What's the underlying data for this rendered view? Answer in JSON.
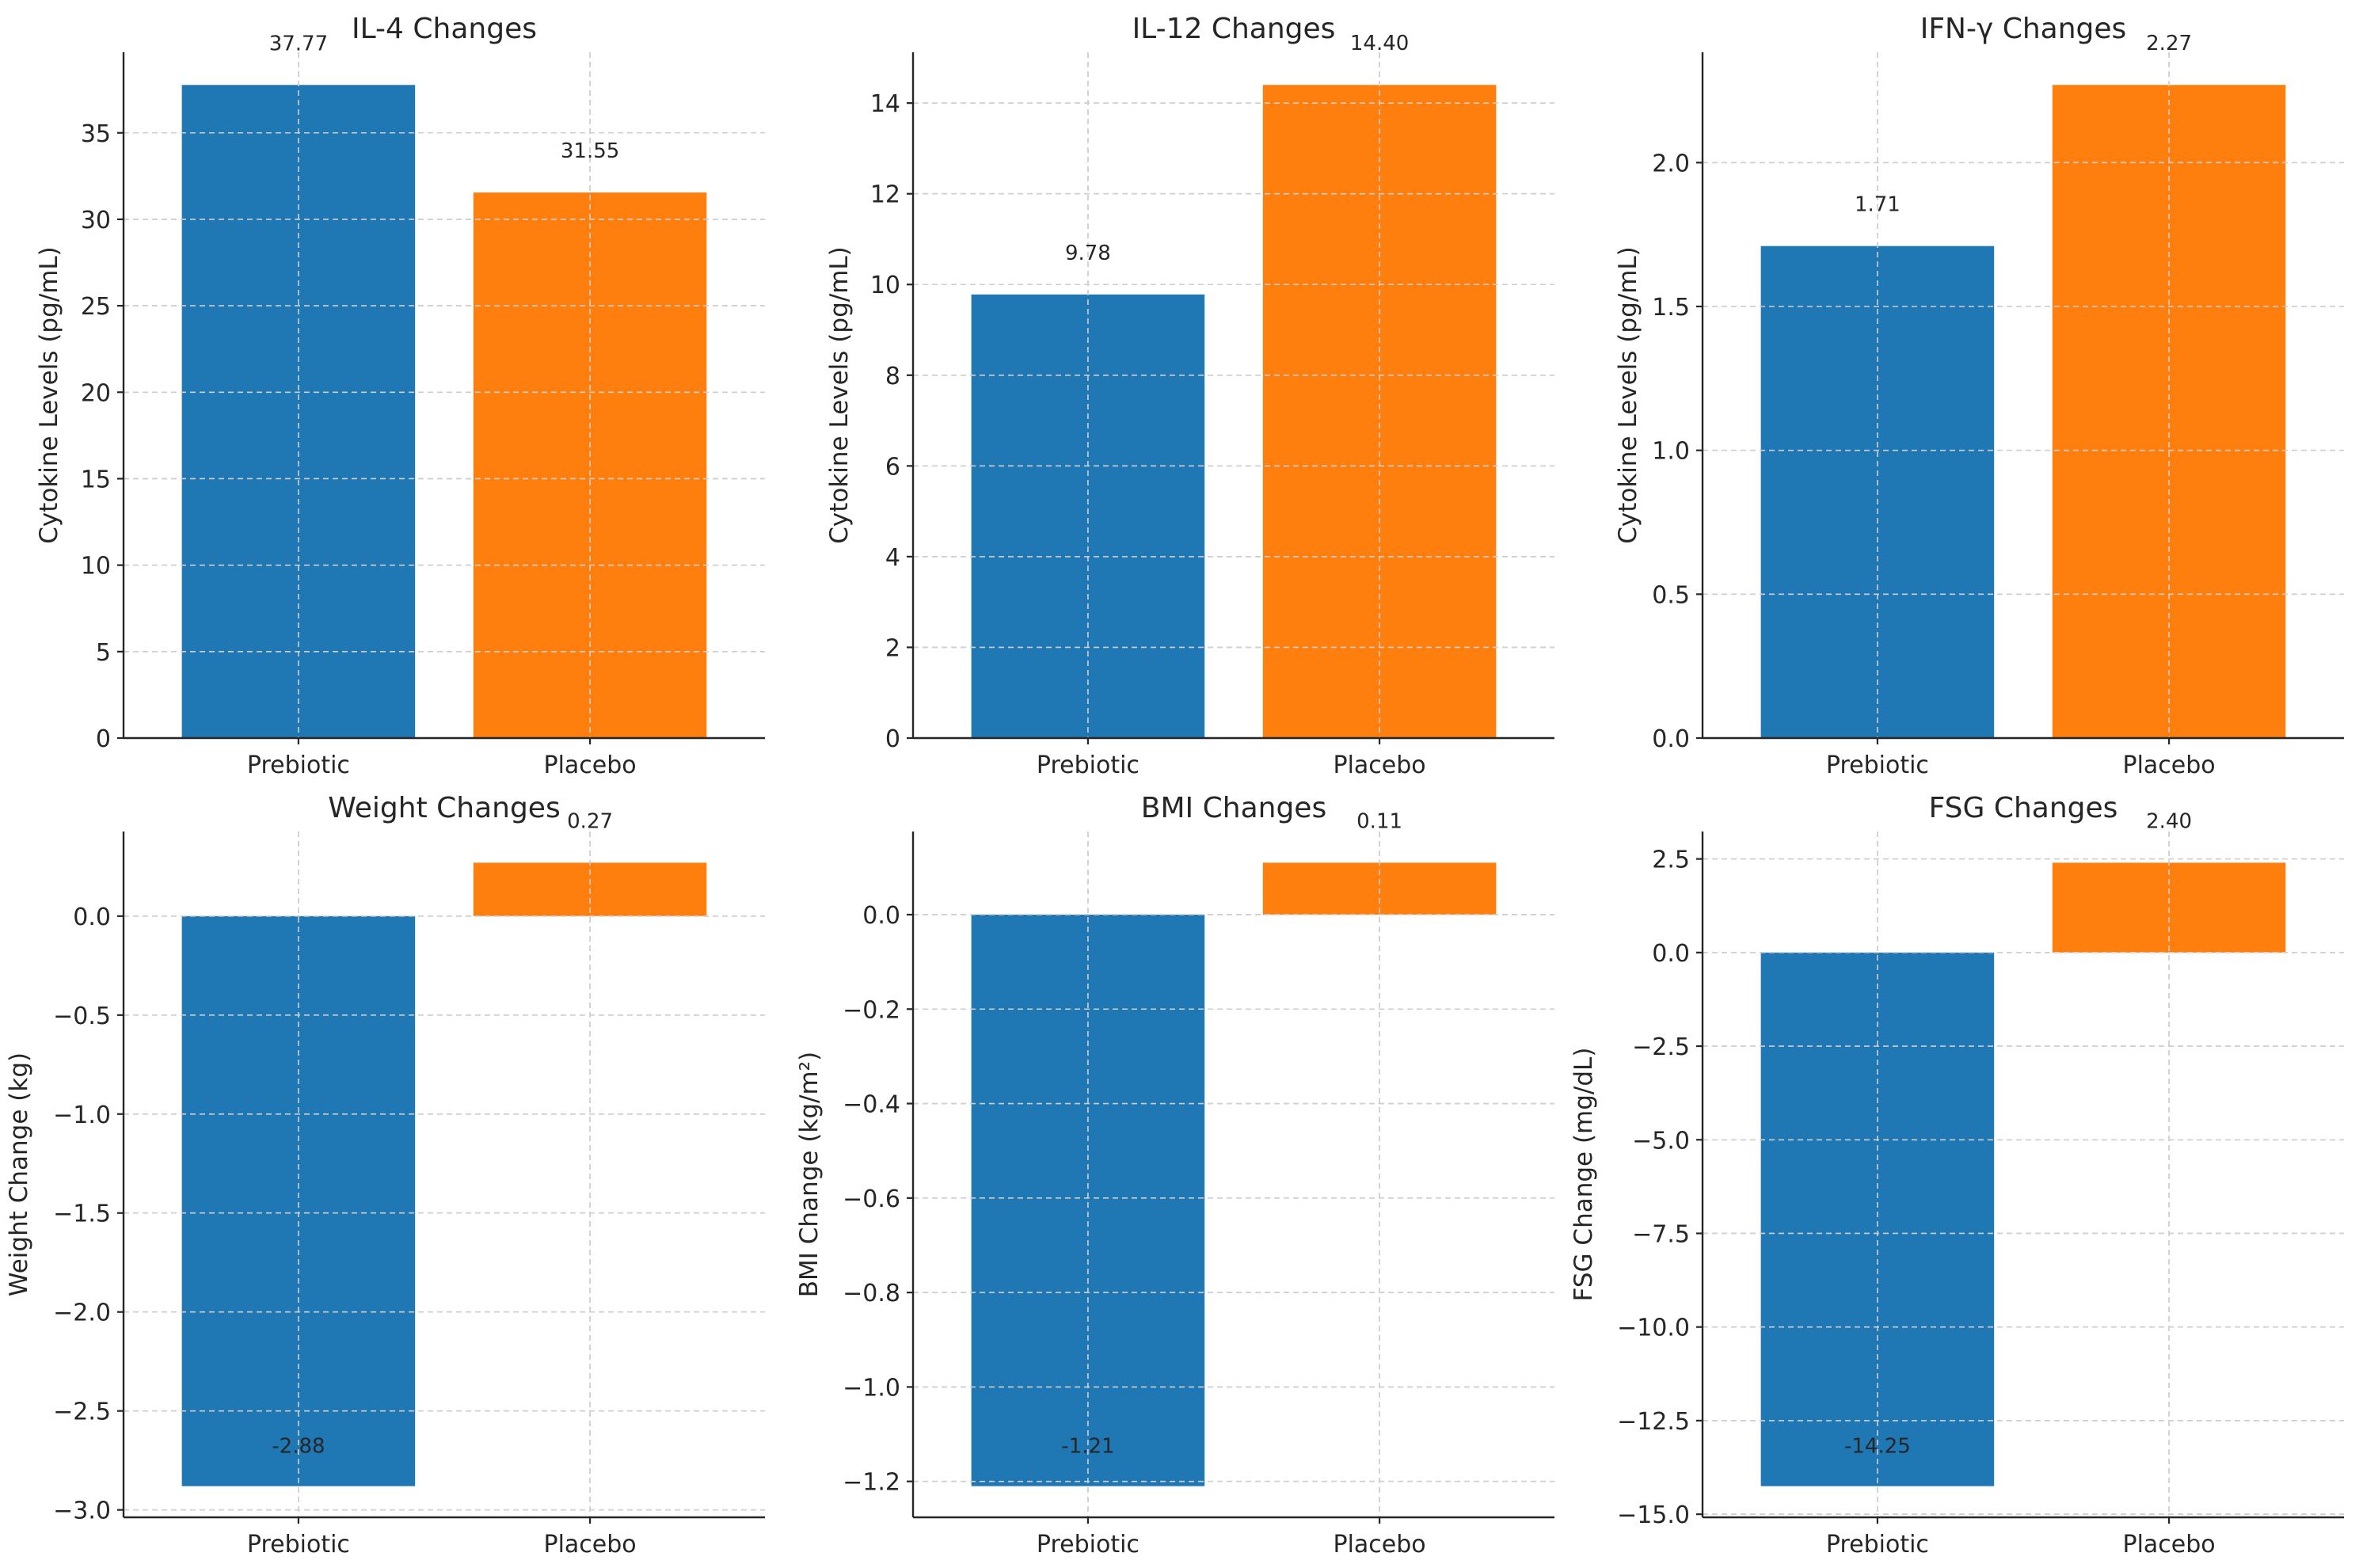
{
  "colors": {
    "prebiotic": "#1f77b4",
    "placebo": "#ff7f0e"
  },
  "chart_data": [
    {
      "type": "bar",
      "title": "IL-4 Changes",
      "xlabel": "",
      "ylabel": "Cytokine Levels (pg/mL)",
      "categories": [
        "Prebiotic",
        "Placebo"
      ],
      "values": [
        37.77,
        31.55
      ],
      "value_labels": [
        "37.77",
        "31.55"
      ],
      "ylim": [
        0,
        39.66
      ],
      "yticks": [
        0,
        5,
        10,
        15,
        20,
        25,
        30,
        35
      ],
      "ytick_labels": [
        "0",
        "5",
        "10",
        "15",
        "20",
        "25",
        "30",
        "35"
      ],
      "grid": true
    },
    {
      "type": "bar",
      "title": "IL-12 Changes",
      "xlabel": "",
      "ylabel": "Cytokine Levels (pg/mL)",
      "categories": [
        "Prebiotic",
        "Placebo"
      ],
      "values": [
        9.78,
        14.4
      ],
      "value_labels": [
        "9.78",
        "14.40"
      ],
      "ylim": [
        0,
        15.12
      ],
      "yticks": [
        0,
        2,
        4,
        6,
        8,
        10,
        12,
        14
      ],
      "ytick_labels": [
        "0",
        "2",
        "4",
        "6",
        "8",
        "10",
        "12",
        "14"
      ],
      "grid": true
    },
    {
      "type": "bar",
      "title": "IFN-γ Changes",
      "xlabel": "",
      "ylabel": "Cytokine Levels (pg/mL)",
      "categories": [
        "Prebiotic",
        "Placebo"
      ],
      "values": [
        1.71,
        2.27
      ],
      "value_labels": [
        "1.71",
        "2.27"
      ],
      "ylim": [
        0,
        2.3835
      ],
      "yticks": [
        0,
        0.5,
        1.0,
        1.5,
        2.0
      ],
      "ytick_labels": [
        "0.0",
        "0.5",
        "1.0",
        "1.5",
        "2.0"
      ],
      "grid": true
    },
    {
      "type": "bar",
      "title": "Weight Changes",
      "xlabel": "",
      "ylabel": "Weight Change (kg)",
      "categories": [
        "Prebiotic",
        "Placebo"
      ],
      "values": [
        -2.88,
        0.27
      ],
      "value_labels": [
        "-2.88",
        "0.27"
      ],
      "ylim": [
        -3.0375,
        0.4275
      ],
      "yticks": [
        -3.0,
        -2.5,
        -2.0,
        -1.5,
        -1.0,
        -0.5,
        0.0
      ],
      "ytick_labels": [
        "−3.0",
        "−2.5",
        "−2.0",
        "−1.5",
        "−1.0",
        "−0.5",
        "0.0"
      ],
      "grid": true
    },
    {
      "type": "bar",
      "title": "BMI Changes",
      "xlabel": "",
      "ylabel": "BMI Change (kg/m²)",
      "categories": [
        "Prebiotic",
        "Placebo"
      ],
      "values": [
        -1.21,
        0.11
      ],
      "value_labels": [
        "-1.21",
        "0.11"
      ],
      "ylim": [
        -1.276,
        0.176
      ],
      "yticks": [
        -1.2,
        -1.0,
        -0.8,
        -0.6,
        -0.4,
        -0.2,
        0.0
      ],
      "ytick_labels": [
        "−1.2",
        "−1.0",
        "−0.8",
        "−0.6",
        "−0.4",
        "−0.2",
        "0.0"
      ],
      "grid": true
    },
    {
      "type": "bar",
      "title": "FSG Changes",
      "xlabel": "",
      "ylabel": "FSG Change (mg/dL)",
      "categories": [
        "Prebiotic",
        "Placebo"
      ],
      "values": [
        -14.25,
        2.4
      ],
      "value_labels": [
        "-14.25",
        "2.40"
      ],
      "ylim": [
        -15.0825,
        3.2325
      ],
      "yticks": [
        -15.0,
        -12.5,
        -10.0,
        -7.5,
        -5.0,
        -2.5,
        0.0,
        2.5
      ],
      "ytick_labels": [
        "−15.0",
        "−12.5",
        "−10.0",
        "−7.5",
        "−5.0",
        "−2.5",
        "0.0",
        "2.5"
      ],
      "grid": true
    }
  ]
}
